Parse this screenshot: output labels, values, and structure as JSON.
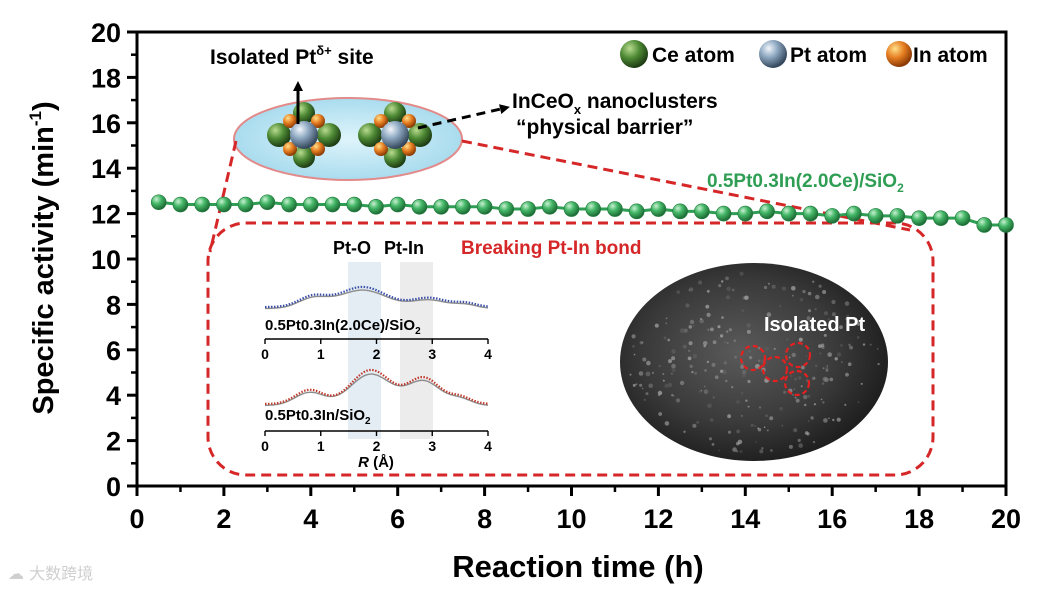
{
  "chart_data": {
    "type": "line",
    "xlabel": "Reaction time (h)",
    "ylabel": "Specific activity (min",
    "ylabel_sup": "-1",
    "ylabel_close": ")",
    "xlim": [
      0,
      20
    ],
    "ylim": [
      0,
      20
    ],
    "x_ticks": [
      "0",
      "2",
      "4",
      "6",
      "8",
      "10",
      "12",
      "14",
      "16",
      "18",
      "20"
    ],
    "y_ticks": [
      "0",
      "2",
      "4",
      "6",
      "8",
      "10",
      "12",
      "14",
      "16",
      "18",
      "20"
    ],
    "grid": false,
    "series": [
      {
        "name": "0.5Pt0.3In(2.0Ce)/SiO2",
        "color": "#2f9e54",
        "x": [
          0.5,
          1.0,
          1.5,
          2.0,
          2.5,
          3.0,
          3.5,
          4.0,
          4.5,
          5.0,
          5.5,
          6.0,
          6.5,
          7.0,
          7.5,
          8.0,
          8.5,
          9.0,
          9.5,
          10.0,
          10.5,
          11.0,
          11.5,
          12.0,
          12.5,
          13.0,
          13.5,
          14.0,
          14.5,
          15.0,
          15.5,
          16.0,
          16.5,
          17.0,
          17.5,
          18.0,
          18.5,
          19.0,
          19.5,
          20.0
        ],
        "y": [
          12.5,
          12.4,
          12.4,
          12.4,
          12.4,
          12.5,
          12.4,
          12.4,
          12.4,
          12.4,
          12.3,
          12.4,
          12.3,
          12.3,
          12.3,
          12.3,
          12.2,
          12.2,
          12.3,
          12.2,
          12.2,
          12.2,
          12.1,
          12.2,
          12.1,
          12.1,
          12.0,
          12.0,
          12.1,
          12.0,
          12.0,
          11.9,
          12.0,
          11.9,
          11.9,
          11.8,
          11.8,
          11.8,
          11.5,
          11.5
        ]
      }
    ],
    "series_label": {
      "main": "0.5Pt0.3In(2.0Ce)/SiO",
      "sub": "2"
    }
  },
  "legend": {
    "items": [
      {
        "label": "Ce atom",
        "color": "#4e8a35"
      },
      {
        "label": "Pt atom",
        "color": "#7f9db8"
      },
      {
        "label": "In atom",
        "color": "#e67e22"
      }
    ]
  },
  "annotations": {
    "isolated_site_prefix": "Isolated Pt",
    "isolated_site_sup": "δ+",
    "isolated_site_suffix": " site",
    "nanoclusters_prefix": "InCeO",
    "nanoclusters_sub": "x",
    "nanoclusters_suffix": " nanoclusters",
    "barrier": "“physical barrier”",
    "pt_o": "Pt-O",
    "pt_in": "Pt-In",
    "breaking_bond": "Breaking Pt-In bond",
    "isolated_pt": "Isolated Pt"
  },
  "inset_exafs": {
    "x_ticks": [
      "0",
      "1",
      "2",
      "3",
      "4"
    ],
    "xlabel_italic": "R",
    "xlabel_rest": " (Å)",
    "top_sample_main": "0.5Pt0.3In(2.0Ce)/SiO",
    "top_sample_sub": "2",
    "bottom_sample_main": "0.5Pt0.3In/SiO",
    "bottom_sample_sub": "2",
    "top_color": "#3a4fa8",
    "bottom_color": "#c0392b",
    "fit_color": "#8c8c8c"
  },
  "colors": {
    "accent_red": "#d62728",
    "series_green": "#2f9e54"
  },
  "watermark": "大数跨境"
}
